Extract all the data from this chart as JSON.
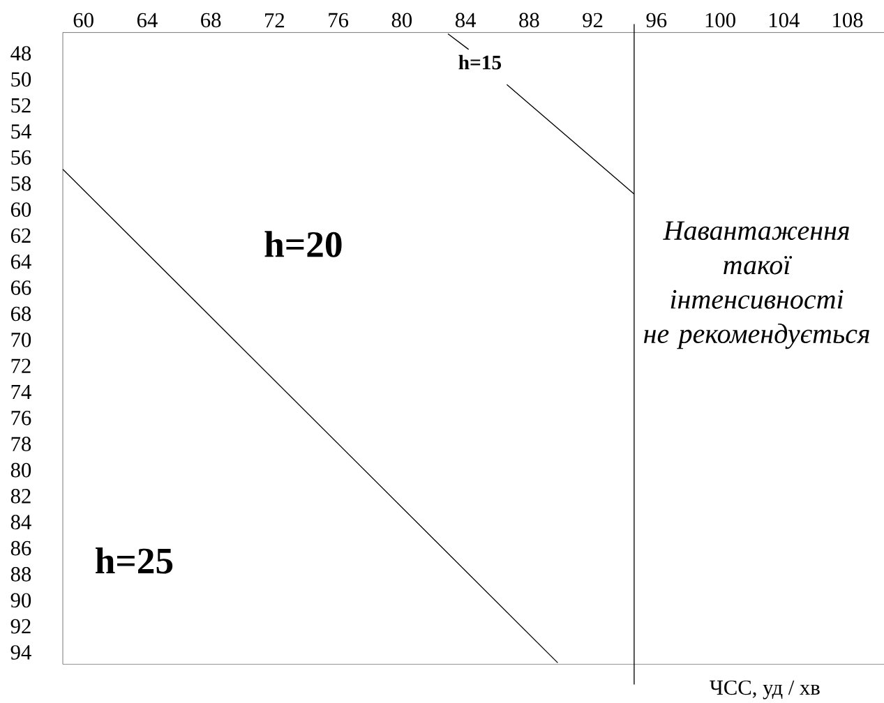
{
  "chart_data": {
    "type": "line",
    "xlabel": "ЧСС, уд / хв",
    "xlim": [
      58.7,
      110.3
    ],
    "ylim": [
      94.9,
      46.4
    ],
    "xticks": [
      60,
      64,
      68,
      72,
      76,
      80,
      84,
      88,
      92,
      96,
      100,
      104,
      108
    ],
    "yticks": [
      48,
      50,
      52,
      54,
      56,
      58,
      60,
      62,
      64,
      66,
      68,
      70,
      72,
      74,
      76,
      78,
      80,
      82,
      84,
      86,
      88,
      90,
      92,
      94
    ],
    "series": [
      {
        "color": "#000000",
        "x": [
          58.7,
          89.8
        ],
        "values": [
          56.9,
          94.8
        ]
      },
      {
        "color": "#000000",
        "x": [
          82.9,
          84.2,
          85.4,
          86.6,
          94.6
        ],
        "values": [
          46.5,
          47.7,
          null,
          50.4,
          58.8
        ]
      }
    ],
    "ref_lines": [
      {
        "axis": "x",
        "value": 94.6,
        "color": "#000000"
      }
    ],
    "annotations": [
      "**h=15**",
      "**h=20**",
      "**h=25**",
      "*Навантаження такої інтенсивності не рекомендується*"
    ]
  }
}
